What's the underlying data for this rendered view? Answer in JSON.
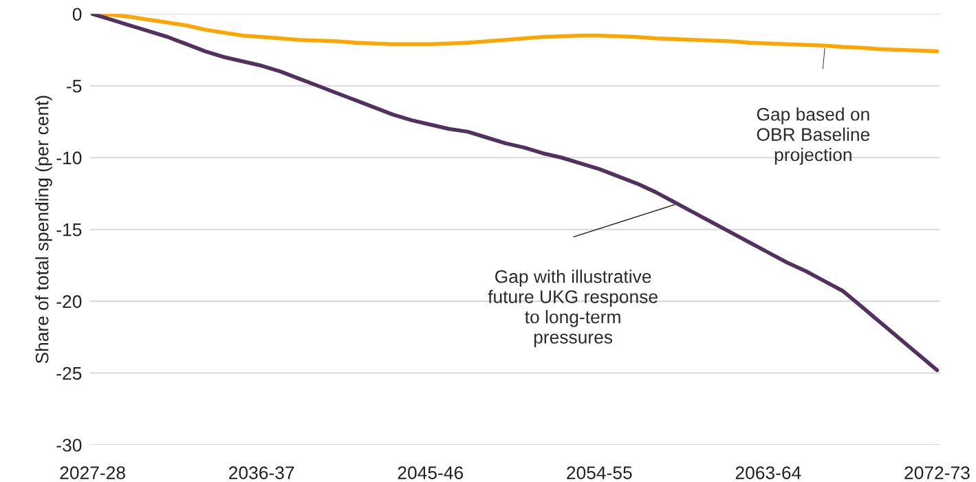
{
  "chart_data": {
    "type": "line",
    "ylabel": "Share of total spending (per cent)",
    "categories": [
      "2027-28",
      null,
      null,
      null,
      null,
      null,
      null,
      null,
      null,
      "2036-37",
      null,
      null,
      null,
      null,
      null,
      null,
      null,
      null,
      "2045-46",
      null,
      null,
      null,
      null,
      null,
      null,
      null,
      null,
      "2054-55",
      null,
      null,
      null,
      null,
      null,
      null,
      null,
      null,
      "2063-64",
      null,
      null,
      null,
      null,
      null,
      null,
      null,
      null,
      "2072-73"
    ],
    "series": [
      {
        "color": "#ffa500",
        "values": [
          0,
          -0.05,
          -0.2,
          -0.4,
          -0.6,
          -0.8,
          -1.1,
          -1.3,
          -1.5,
          -1.6,
          -1.7,
          -1.8,
          -1.85,
          -1.9,
          -2.0,
          -2.05,
          -2.1,
          -2.1,
          -2.1,
          -2.05,
          -2.0,
          -1.9,
          -1.8,
          -1.7,
          -1.6,
          -1.55,
          -1.5,
          -1.5,
          -1.55,
          -1.6,
          -1.7,
          -1.75,
          -1.8,
          -1.85,
          -1.9,
          -2.0,
          -2.05,
          -2.1,
          -2.15,
          -2.2,
          -2.3,
          -2.35,
          -2.45,
          -2.5,
          -2.55,
          -2.6
        ]
      },
      {
        "color": "#51315e",
        "values": [
          0,
          -0.4,
          -0.8,
          -1.2,
          -1.6,
          -2.1,
          -2.6,
          -3.0,
          -3.3,
          -3.6,
          -4.0,
          -4.5,
          -5.0,
          -5.5,
          -6.0,
          -6.5,
          -7.0,
          -7.4,
          -7.7,
          -8.0,
          -8.2,
          -8.6,
          -9.0,
          -9.3,
          -9.7,
          -10.0,
          -10.4,
          -10.8,
          -11.3,
          -11.8,
          -12.4,
          -13.1,
          -13.8,
          -14.5,
          -15.2,
          -15.9,
          -16.6,
          -17.3,
          -17.9,
          -18.6,
          -19.3,
          -20.4,
          -21.5,
          -22.6,
          -23.7,
          -24.8
        ]
      }
    ],
    "annotations": [
      "Gap based on\nOBR Baseline\nprojection",
      "Gap with illustrative\nfuture UKG response\nto long-term\npressures"
    ],
    "ylim": [
      -30,
      0
    ],
    "yticks": [
      -30,
      -25,
      -20,
      -15,
      -10,
      -5,
      0
    ],
    "grid": "y"
  }
}
